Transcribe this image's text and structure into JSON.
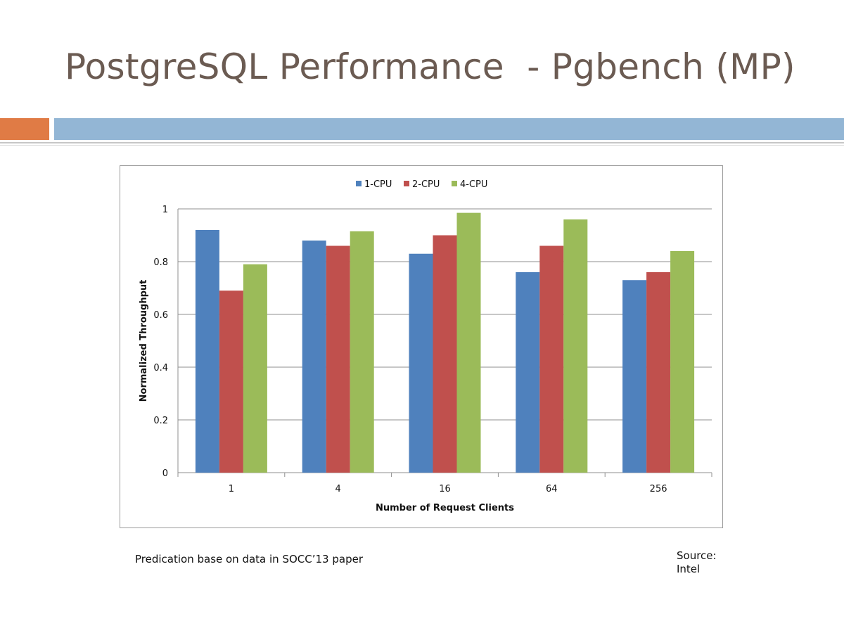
{
  "slide": {
    "title": "PostgreSQL Performance  - Pgbench (MP)",
    "footnote": "Predication base on data in SOCC’13 paper",
    "source": "Source: Intel",
    "colors": {
      "title": "#6b5b52",
      "accent_orange": "#e07b45",
      "accent_blue": "#93b6d5"
    }
  },
  "chart_data": {
    "type": "bar",
    "title": "",
    "xlabel": "Number  of Request Clients",
    "ylabel": "Normalized Throughput",
    "categories": [
      "1",
      "4",
      "16",
      "64",
      "256"
    ],
    "series": [
      {
        "name": "1-CPU",
        "color": "#4f81bd",
        "values": [
          0.92,
          0.88,
          0.83,
          0.76,
          0.73
        ]
      },
      {
        "name": "2-CPU",
        "color": "#c0504d",
        "values": [
          0.69,
          0.86,
          0.9,
          0.86,
          0.76
        ]
      },
      {
        "name": "4-CPU",
        "color": "#9bbb59",
        "values": [
          0.79,
          0.915,
          0.985,
          0.96,
          0.84
        ]
      }
    ],
    "yticks": [
      "0",
      "0.2",
      "0.4",
      "0.6",
      "0.8",
      "1"
    ],
    "ylim": [
      0,
      1
    ],
    "grid": true,
    "legend_position": "top-center"
  }
}
